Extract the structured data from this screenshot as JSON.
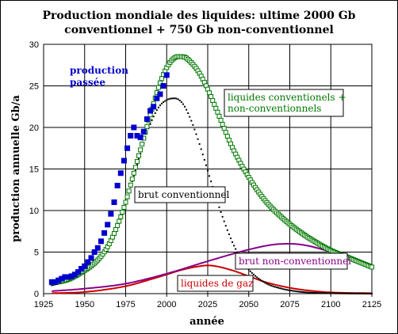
{
  "chart_data": {
    "type": "line",
    "title_lines": [
      "Production mondiale des liquides: ultime 2000 Gb",
      "conventionnel + 750 Gb non-conventionnel"
    ],
    "xlabel": "année",
    "ylabel": "production annuelle Gb/a",
    "xlim": [
      1925,
      2125
    ],
    "ylim": [
      0,
      30
    ],
    "x_ticks": [
      1925,
      1950,
      1975,
      2000,
      2025,
      2050,
      2075,
      2100,
      2125
    ],
    "y_ticks": [
      0,
      5,
      10,
      15,
      20,
      25,
      30
    ],
    "grid": true,
    "series": [
      {
        "name": "production passée",
        "label_lines": [
          "production",
          "passée"
        ],
        "color": "#0000cc",
        "marker": "filled-square",
        "x": [
          1930,
          1932,
          1934,
          1936,
          1938,
          1940,
          1942,
          1944,
          1946,
          1948,
          1950,
          1952,
          1954,
          1956,
          1958,
          1960,
          1962,
          1964,
          1966,
          1968,
          1970,
          1972,
          1974,
          1976,
          1978,
          1980,
          1982,
          1984,
          1986,
          1988,
          1990,
          1992,
          1994,
          1996,
          1998,
          2000
        ],
        "y": [
          1.4,
          1.4,
          1.6,
          1.8,
          2.0,
          2.0,
          2.1,
          2.3,
          2.6,
          3.0,
          3.3,
          3.8,
          4.3,
          5.0,
          5.5,
          6.3,
          7.3,
          8.3,
          9.6,
          11.0,
          13.0,
          14.5,
          16.0,
          17.5,
          19.0,
          20.0,
          19.0,
          18.8,
          19.5,
          21.0,
          22.0,
          22.5,
          23.5,
          24.0,
          25.0,
          26.3
        ]
      },
      {
        "name": "liquides conventionels + non-conventionnels",
        "label_lines": [
          "liquides conventionels +",
          "non-conventionnels"
        ],
        "color": "#007700",
        "marker": "open-square",
        "x": [
          1930,
          1940,
          1950,
          1955,
          1960,
          1965,
          1970,
          1975,
          1980,
          1985,
          1990,
          1995,
          2000,
          2005,
          2010,
          2015,
          2020,
          2025,
          2030,
          2040,
          2050,
          2060,
          2070,
          2080,
          2090,
          2100,
          2110,
          2125
        ],
        "y": [
          1.3,
          1.7,
          2.8,
          3.5,
          4.5,
          6.0,
          8.2,
          11.0,
          14.5,
          18.0,
          21.5,
          24.8,
          27.2,
          28.4,
          28.5,
          27.8,
          26.5,
          24.6,
          22.3,
          17.6,
          14.0,
          11.2,
          9.2,
          7.6,
          6.3,
          5.2,
          4.4,
          3.2
        ]
      },
      {
        "name": "brut conventionnel",
        "color": "#000000",
        "marker": "dotted",
        "x": [
          1930,
          1940,
          1950,
          1955,
          1960,
          1965,
          1970,
          1975,
          1980,
          1985,
          1990,
          1995,
          2000,
          2005,
          2010,
          2015,
          2020,
          2025,
          2030,
          2035,
          2040,
          2045,
          2050,
          2060,
          2070,
          2080,
          2090,
          2100,
          2110,
          2125
        ],
        "y": [
          1.0,
          1.5,
          2.5,
          3.2,
          4.2,
          5.8,
          8.0,
          10.8,
          14.2,
          17.5,
          20.4,
          22.4,
          23.3,
          23.5,
          22.8,
          20.8,
          18.0,
          14.8,
          11.6,
          8.7,
          6.2,
          4.3,
          2.9,
          1.3,
          0.6,
          0.25,
          0.1,
          0.05,
          0.02,
          0.0
        ]
      },
      {
        "name": "brut non-conventionnel",
        "color": "#880088",
        "marker": "line",
        "x": [
          1930,
          1950,
          1975,
          2000,
          2025,
          2050,
          2065,
          2075,
          2085,
          2100,
          2110,
          2125
        ],
        "y": [
          0.3,
          0.6,
          1.2,
          2.4,
          3.9,
          5.3,
          5.9,
          6.0,
          5.8,
          5.0,
          4.3,
          3.2
        ]
      },
      {
        "name": "liquides de gaz",
        "color": "#cc0000",
        "marker": "line",
        "x": [
          1930,
          1950,
          1975,
          1990,
          2000,
          2010,
          2020,
          2025,
          2030,
          2040,
          2050,
          2060,
          2075,
          2090,
          2100,
          2125
        ],
        "y": [
          0.05,
          0.2,
          0.9,
          1.7,
          2.3,
          2.9,
          3.3,
          3.4,
          3.3,
          2.8,
          2.1,
          1.4,
          0.7,
          0.3,
          0.15,
          0.05
        ]
      }
    ]
  }
}
